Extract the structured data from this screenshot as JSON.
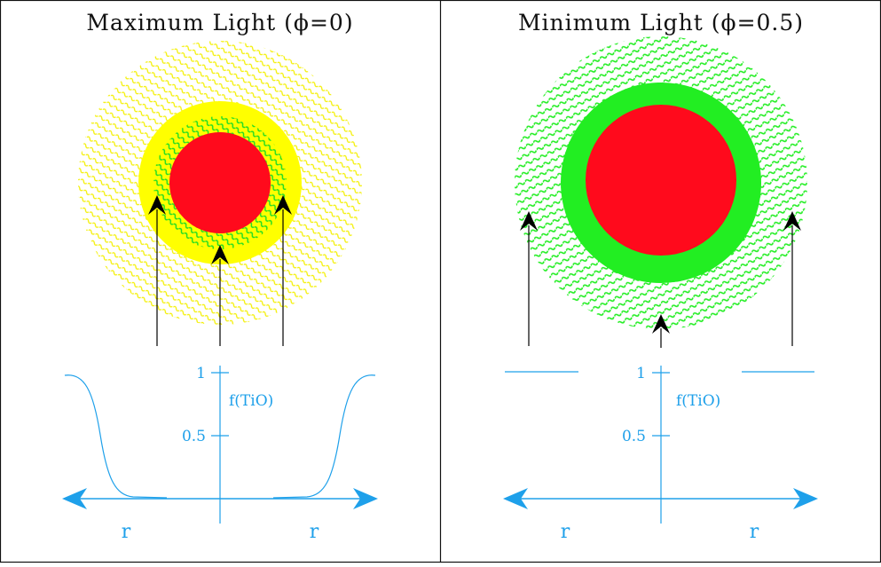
{
  "panels": [
    {
      "title": "Maximum Light (ϕ=0)",
      "curve_label": "f(TiO)",
      "tick_labels": [
        "1",
        "0.5"
      ],
      "axis_labels": [
        "r",
        "r"
      ]
    },
    {
      "title": "Minimum Light (ϕ=0.5)",
      "curve_label": "f(TiO)",
      "tick_labels": [
        "1",
        "0.5"
      ],
      "axis_labels": [
        "r",
        "r"
      ]
    }
  ],
  "colors": {
    "core": "#ff0a1c",
    "bright_shell": "#ffff00",
    "tio_shell": "#22ee22",
    "axis": "#1ea0ea",
    "arrow": "#000000",
    "frame": "#111111"
  }
}
